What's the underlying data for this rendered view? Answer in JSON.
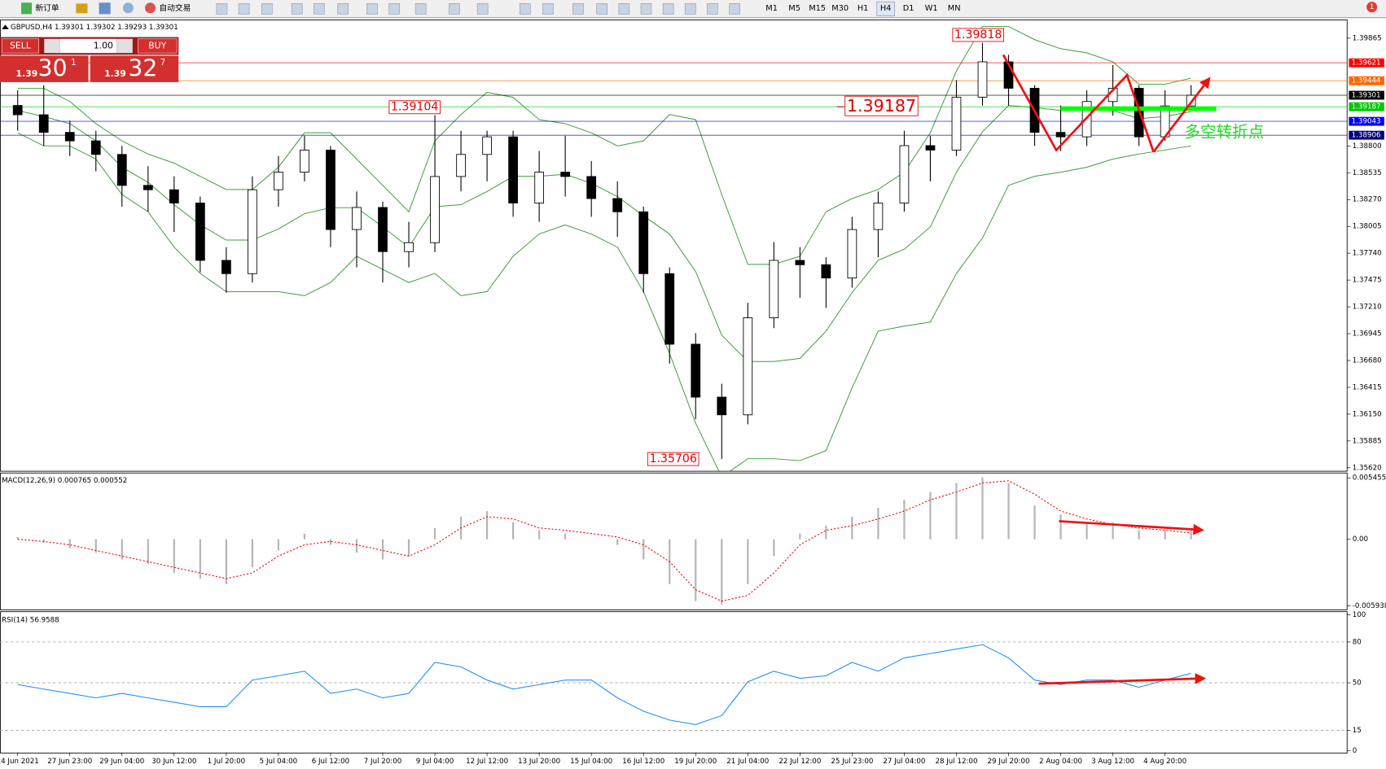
{
  "toolbar": {
    "new_order": "新订单",
    "auto_trading": "自动交易",
    "timeframes": [
      "M1",
      "M5",
      "M15",
      "M30",
      "H1",
      "H4",
      "D1",
      "W1",
      "MN"
    ],
    "alerts": "1"
  },
  "trade_panel": {
    "sell": "SELL",
    "buy": "BUY",
    "lot": "1.00",
    "sell_big": "1.39",
    "sell_pips": "30",
    "sell_point": "1",
    "buy_big": "1.39",
    "buy_pips": "32",
    "buy_point": "7"
  },
  "chart_data": [
    {
      "type": "candlestick",
      "title": "GBPUSD,H4  1.39301 1.39302 1.39293 1.39301",
      "categories": [
        "24 Jun 2021",
        null,
        "27 Jun 23:00",
        null,
        "29 Jun 04:00",
        null,
        "30 Jun 12:00",
        null,
        "1 Jul 20:00",
        null,
        "5 Jul 04:00",
        null,
        "6 Jul 12:00",
        null,
        "7 Jul 20:00",
        null,
        "9 Jul 04:00",
        null,
        "12 Jul 12:00",
        null,
        "13 Jul 20:00",
        null,
        "15 Jul 04:00",
        null,
        "16 Jul 12:00",
        null,
        "19 Jul 20:00",
        null,
        "21 Jul 04:00",
        null,
        "22 Jul 12:00",
        null,
        "25 Jul 23:00",
        null,
        "27 Jul 04:00",
        null,
        "28 Jul 12:00",
        null,
        "29 Jul 20:00",
        null,
        "2 Aug 04:00",
        null,
        "3 Aug 12:00",
        null,
        "4 Aug 20:00",
        null
      ],
      "open": [
        1.392,
        1.39108,
        1.38934,
        1.3885,
        1.38716,
        1.3841,
        1.38367,
        1.38236,
        1.37669,
        1.37538,
        1.38367,
        1.38541,
        1.38759,
        1.37974,
        1.38192,
        1.37756,
        1.37844,
        1.38498,
        1.38716,
        1.3889,
        1.38236,
        1.38541,
        1.38498,
        1.3828,
        1.38149,
        1.37538,
        1.36841,
        1.36318,
        1.36143,
        1.37102,
        1.37669,
        1.37626,
        1.37495,
        1.37974,
        1.38236,
        1.38803,
        1.38759,
        1.39282,
        1.39631,
        1.3937,
        1.38934,
        1.3889,
        1.39239,
        1.3937,
        1.3889,
        1.39195
      ],
      "high": [
        1.3935,
        1.394,
        1.3905,
        1.3895,
        1.388,
        1.386,
        1.385,
        1.383,
        1.378,
        1.385,
        1.387,
        1.389,
        1.388,
        1.3835,
        1.3825,
        1.3805,
        1.39104,
        1.3895,
        1.3895,
        1.3895,
        1.3875,
        1.389,
        1.3865,
        1.3845,
        1.382,
        1.376,
        1.3695,
        1.3645,
        1.3725,
        1.3785,
        1.378,
        1.377,
        1.381,
        1.3835,
        1.3895,
        1.389,
        1.3945,
        1.39818,
        1.397,
        1.394,
        1.392,
        1.3935,
        1.396,
        1.394,
        1.3935,
        1.394
      ],
      "low": [
        1.3895,
        1.388,
        1.387,
        1.3855,
        1.382,
        1.3815,
        1.3795,
        1.3755,
        1.3735,
        1.3745,
        1.382,
        1.3845,
        1.378,
        1.376,
        1.3745,
        1.376,
        1.3775,
        1.3835,
        1.3845,
        1.381,
        1.3805,
        1.383,
        1.381,
        1.379,
        1.3735,
        1.3665,
        1.361,
        1.35706,
        1.3605,
        1.37,
        1.373,
        1.372,
        1.374,
        1.377,
        1.3815,
        1.3845,
        1.387,
        1.392,
        1.392,
        1.388,
        1.3875,
        1.388,
        1.391,
        1.388,
        1.3885,
        1.3918
      ],
      "close": [
        1.39108,
        1.38934,
        1.3885,
        1.38716,
        1.3841,
        1.38367,
        1.38236,
        1.37669,
        1.37538,
        1.38367,
        1.38541,
        1.38759,
        1.37974,
        1.38192,
        1.37756,
        1.37844,
        1.38498,
        1.38716,
        1.3889,
        1.38236,
        1.38541,
        1.38498,
        1.3828,
        1.38149,
        1.37538,
        1.36841,
        1.36318,
        1.36143,
        1.37102,
        1.37669,
        1.37626,
        1.37495,
        1.37974,
        1.38236,
        1.38803,
        1.38759,
        1.39282,
        1.39631,
        1.3937,
        1.38934,
        1.3889,
        1.39239,
        1.3937,
        1.3889,
        1.39195,
        1.39301
      ],
      "up_color": "#ffffff",
      "down_color": "#000000",
      "bands": {
        "color": "#3a9d3a",
        "upper": [
          1.3937,
          1.3937,
          1.3924,
          1.3902,
          1.3885,
          1.3872,
          1.3863,
          1.385,
          1.3837,
          1.3837,
          1.3859,
          1.3893,
          1.3893,
          1.3867,
          1.3841,
          1.3815,
          1.3885,
          1.3911,
          1.3933,
          1.3928,
          1.3906,
          1.3902,
          1.3893,
          1.388,
          1.3885,
          1.3911,
          1.3906,
          1.3832,
          1.3763,
          1.3763,
          1.3771,
          1.3815,
          1.3828,
          1.3837,
          1.3854,
          1.3893,
          1.3954,
          1.3998,
          1.3998,
          1.3985,
          1.3976,
          1.3972,
          1.3963,
          1.3941,
          1.3941,
          1.3947
        ],
        "middle": [
          1.3915,
          1.3909,
          1.3902,
          1.3885,
          1.3859,
          1.3844,
          1.3822,
          1.3802,
          1.3787,
          1.3787,
          1.3798,
          1.3813,
          1.3819,
          1.3819,
          1.38,
          1.378,
          1.382,
          1.3822,
          1.3835,
          1.385,
          1.385,
          1.3852,
          1.3843,
          1.383,
          1.3811,
          1.3793,
          1.3756,
          1.3693,
          1.3667,
          1.3667,
          1.367,
          1.3697,
          1.3735,
          1.3767,
          1.3778,
          1.38,
          1.3854,
          1.3894,
          1.392,
          1.3918,
          1.3915,
          1.3916,
          1.3915,
          1.3907,
          1.3909,
          1.3914
        ],
        "lower": [
          1.3893,
          1.388,
          1.388,
          1.3867,
          1.3832,
          1.3815,
          1.378,
          1.3754,
          1.3736,
          1.3736,
          1.3736,
          1.3732,
          1.3745,
          1.3771,
          1.3758,
          1.3745,
          1.3754,
          1.3732,
          1.3736,
          1.3771,
          1.3793,
          1.3802,
          1.3793,
          1.378,
          1.3736,
          1.3675,
          1.3606,
          1.3553,
          1.3571,
          1.3571,
          1.3569,
          1.3579,
          1.3641,
          1.3697,
          1.3702,
          1.3706,
          1.3754,
          1.3789,
          1.3841,
          1.385,
          1.3854,
          1.3859,
          1.3867,
          1.3872,
          1.3876,
          1.388
        ]
      },
      "hlines": [
        {
          "value": 1.39621,
          "color": "#ff0000"
        },
        {
          "value": 1.39444,
          "color": "#ff6600"
        },
        {
          "value": 1.39301,
          "color": "#000000"
        },
        {
          "value": 1.39187,
          "color": "#00c800"
        },
        {
          "value": 1.39043,
          "color": "#0000ff"
        },
        {
          "value": 1.38906,
          "color": "#000080"
        }
      ],
      "annotation": "多空转折点",
      "ylim": [
        1.3559,
        1.4005
      ],
      "yticks": [
        {
          "value": 1.3562,
          "label": "1.35620"
        },
        1.35885,
        {
          "value": 1.3615,
          "label": "1.36150"
        },
        1.36415,
        {
          "value": 1.3668,
          "label": "1.36680"
        },
        1.36945,
        {
          "value": 1.3721,
          "label": "1.37210"
        },
        1.37475,
        {
          "value": 1.3774,
          "label": "1.37740"
        },
        1.38005,
        {
          "value": 1.3827,
          "label": "1.38270"
        },
        1.38535,
        {
          "value": 1.388,
          "label": "1.38800"
        },
        1.39865
      ]
    },
    {
      "type": "macd",
      "title": "MACD(12,26,9) 0.000765 0.000552",
      "histogram": [
        0.0002,
        -0.0003,
        -0.0008,
        -0.0012,
        -0.0018,
        -0.0022,
        -0.003,
        -0.0035,
        -0.004,
        -0.0025,
        -0.001,
        0.0005,
        -0.0005,
        -0.0012,
        -0.0018,
        -0.0015,
        0.001,
        0.002,
        0.0025,
        0.0015,
        0.0008,
        0.0005,
        0,
        -0.0005,
        -0.0018,
        -0.004,
        -0.0055,
        -0.0058,
        -0.004,
        -0.0015,
        0.0005,
        0.0012,
        0.002,
        0.0028,
        0.0035,
        0.0042,
        0.005,
        0.0055,
        0.005,
        0.003,
        0.0022,
        0.0015,
        0.0015,
        0.0008,
        0.0008,
        0.000765
      ],
      "signal": [
        0,
        -0.0002,
        -0.0005,
        -0.001,
        -0.0015,
        -0.002,
        -0.0025,
        -0.003,
        -0.0035,
        -0.003,
        -0.0015,
        -0.0005,
        -0.0002,
        -0.0005,
        -0.001,
        -0.0015,
        -0.0005,
        0.001,
        0.002,
        0.0018,
        0.001,
        0.0008,
        0.0005,
        0.0002,
        -0.0005,
        -0.002,
        -0.0045,
        -0.0055,
        -0.005,
        -0.003,
        -0.0005,
        0.0008,
        0.0012,
        0.0018,
        0.0025,
        0.0035,
        0.0042,
        0.005,
        0.0052,
        0.004,
        0.0025,
        0.0018,
        0.0013,
        0.001,
        0.0008,
        0.000552
      ],
      "histogram_color": "#b4b4b4",
      "signal_color": "#ff0000",
      "ylim": [
        -0.00625,
        0.00585
      ],
      "yticks": [
        0.005455,
        {
          "value": 0,
          "label": "0.00"
        },
        -0.005938
      ]
    },
    {
      "type": "rsi",
      "title": "RSI(14) 56.9588",
      "values": [
        48.7,
        45.4,
        42.2,
        38.9,
        42.2,
        38.9,
        35.7,
        32.4,
        32.4,
        52.0,
        55.2,
        58.5,
        42.2,
        45.4,
        38.9,
        42.2,
        65.0,
        61.7,
        52.0,
        45.4,
        48.7,
        52.0,
        52.0,
        38.9,
        29.1,
        22.6,
        19.3,
        25.9,
        50.7,
        58.5,
        53.3,
        55.2,
        65.0,
        58.5,
        68.3,
        71.5,
        74.8,
        78.0,
        68.3,
        52.0,
        48.7,
        52.0,
        52.0,
        46.7,
        52.0,
        56.9588
      ],
      "color": "#1e90ff",
      "levels": [
        80,
        50,
        15
      ],
      "ylim": [
        0,
        100
      ],
      "yticks": [
        100,
        80,
        50,
        15,
        0
      ]
    }
  ]
}
